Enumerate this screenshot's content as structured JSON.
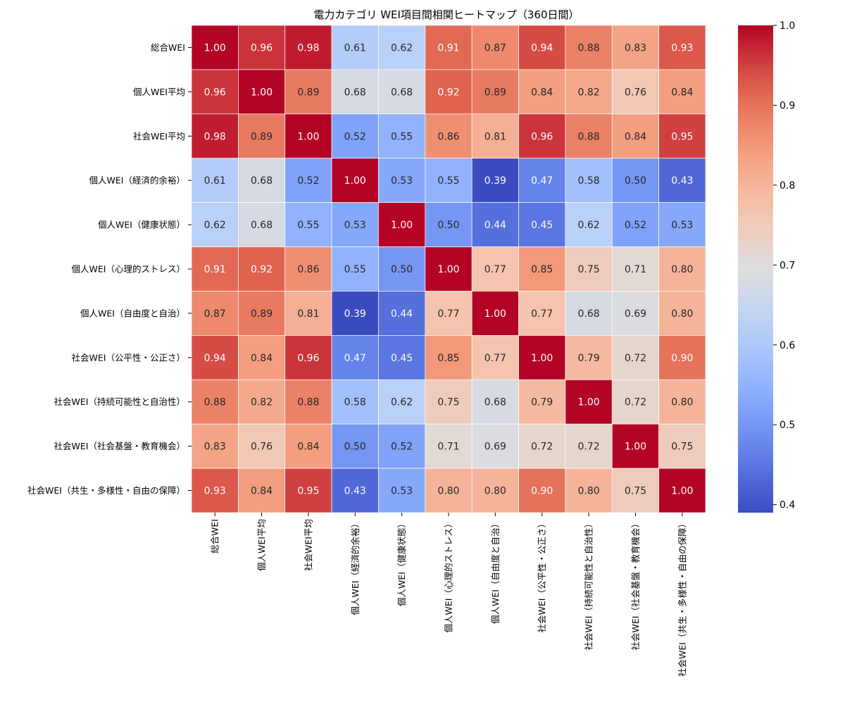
{
  "chart_data": {
    "type": "heatmap",
    "title": "電力カテゴリ WEI項目間相関ヒートマップ（360日間）",
    "row_labels": [
      "総合WEI",
      "個人WEI平均",
      "社会WEI平均",
      "個人WEI（経済的余裕）",
      "個人WEI（健康状態）",
      "個人WEI（心理的ストレス）",
      "個人WEI（自由度と自治）",
      "社会WEI（公平性・公正さ）",
      "社会WEI（持続可能性と自治性）",
      "社会WEI（社会基盤・教育機会）",
      "社会WEI（共生・多様性・自由の保障）"
    ],
    "col_labels": [
      "総合WEI",
      "個人WEI平均",
      "社会WEI平均",
      "個人WEI（経済的余裕）",
      "個人WEI（健康状態）",
      "個人WEI（心理的ストレス）",
      "個人WEI（自由度と自治）",
      "社会WEI（公平性・公正さ）",
      "社会WEI（持続可能性と自治性）",
      "社会WEI（社会基盤・教育機会）",
      "社会WEI（共生・多様性・自由の保障）"
    ],
    "values": [
      [
        1.0,
        0.96,
        0.98,
        0.61,
        0.62,
        0.91,
        0.87,
        0.94,
        0.88,
        0.83,
        0.93
      ],
      [
        0.96,
        1.0,
        0.89,
        0.68,
        0.68,
        0.92,
        0.89,
        0.84,
        0.82,
        0.76,
        0.84
      ],
      [
        0.98,
        0.89,
        1.0,
        0.52,
        0.55,
        0.86,
        0.81,
        0.96,
        0.88,
        0.84,
        0.95
      ],
      [
        0.61,
        0.68,
        0.52,
        1.0,
        0.53,
        0.55,
        0.39,
        0.47,
        0.58,
        0.5,
        0.43
      ],
      [
        0.62,
        0.68,
        0.55,
        0.53,
        1.0,
        0.5,
        0.44,
        0.45,
        0.62,
        0.52,
        0.53
      ],
      [
        0.91,
        0.92,
        0.86,
        0.55,
        0.5,
        1.0,
        0.77,
        0.85,
        0.75,
        0.71,
        0.8
      ],
      [
        0.87,
        0.89,
        0.81,
        0.39,
        0.44,
        0.77,
        1.0,
        0.77,
        0.68,
        0.69,
        0.8
      ],
      [
        0.94,
        0.84,
        0.96,
        0.47,
        0.45,
        0.85,
        0.77,
        1.0,
        0.79,
        0.72,
        0.9
      ],
      [
        0.88,
        0.82,
        0.88,
        0.58,
        0.62,
        0.75,
        0.68,
        0.79,
        1.0,
        0.72,
        0.8
      ],
      [
        0.83,
        0.76,
        0.84,
        0.5,
        0.52,
        0.71,
        0.69,
        0.72,
        0.72,
        1.0,
        0.75
      ],
      [
        0.93,
        0.84,
        0.95,
        0.43,
        0.53,
        0.8,
        0.8,
        0.9,
        0.8,
        0.75,
        1.0
      ]
    ],
    "colormap": "coolwarm",
    "vmin": 0.39,
    "vmax": 1.0,
    "colorbar_ticks": [
      0.4,
      0.5,
      0.6,
      0.7,
      0.8,
      0.9,
      1.0
    ],
    "colorbar_tick_labels": [
      "0.4",
      "0.5",
      "0.6",
      "0.7",
      "0.8",
      "0.9",
      "1.0"
    ],
    "annotation_format": "0.00"
  }
}
